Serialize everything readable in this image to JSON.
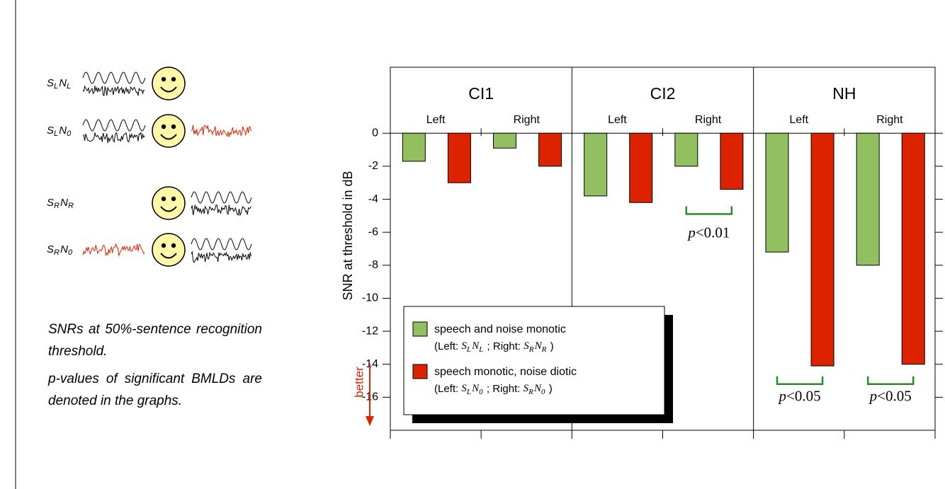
{
  "chart_data": {
    "type": "bar",
    "y_label": "SNR at threshold in dB",
    "better_label": "better",
    "panels": [
      "CI1",
      "CI2",
      "NH"
    ],
    "categories": [
      "Left",
      "Right",
      "Left",
      "Right",
      "Left",
      "Right"
    ],
    "series": [
      {
        "name": "speech and noise monotic",
        "color": "#92c060",
        "note": [
          "(Left: ",
          {
            "base": "S",
            "sub": "L"
          },
          {
            "base": "N",
            "sub": "L"
          },
          " ; Right: ",
          {
            "base": "S",
            "sub": "R"
          },
          {
            "base": "N",
            "sub": "R"
          },
          " )"
        ],
        "values": [
          -1.7,
          -0.9,
          -3.8,
          -2.0,
          -7.2,
          -8.0
        ]
      },
      {
        "name": "speech monotic, noise diotic",
        "color": "#dd2200",
        "note": [
          "(Left: ",
          {
            "base": "S",
            "sub": "L"
          },
          {
            "base": "N",
            "sub": "0"
          },
          " ; Right: ",
          {
            "base": "S",
            "sub": "R"
          },
          {
            "base": "N",
            "sub": "0"
          },
          " )"
        ],
        "values": [
          -3.0,
          -2.0,
          -4.2,
          -3.4,
          -14.1,
          -14.0
        ]
      }
    ],
    "ylim": [
      -18,
      4
    ],
    "yticks": [
      0,
      -2,
      -4,
      -6,
      -8,
      -10,
      -12,
      -14,
      -16
    ],
    "annotations": [
      {
        "italic": "p",
        "text": "<0.01"
      },
      {
        "italic": "p",
        "text": "<0.05"
      },
      {
        "italic": "p",
        "text": "<0.05"
      }
    ]
  },
  "conditions": [
    [
      {
        "base": "S",
        "sub": "L"
      },
      {
        "base": "N",
        "sub": "L"
      }
    ],
    [
      {
        "base": "S",
        "sub": "L"
      },
      {
        "base": "N",
        "sub": "0"
      }
    ],
    [
      {
        "base": "S",
        "sub": "R"
      },
      {
        "base": "N",
        "sub": "R"
      }
    ],
    [
      {
        "base": "S",
        "sub": "R"
      },
      {
        "base": "N",
        "sub": "0"
      }
    ]
  ],
  "notes": [
    "SNRs at 50%-sentence recognition threshold.",
    "p-values of significant BMLDs are denoted in the graphs."
  ]
}
